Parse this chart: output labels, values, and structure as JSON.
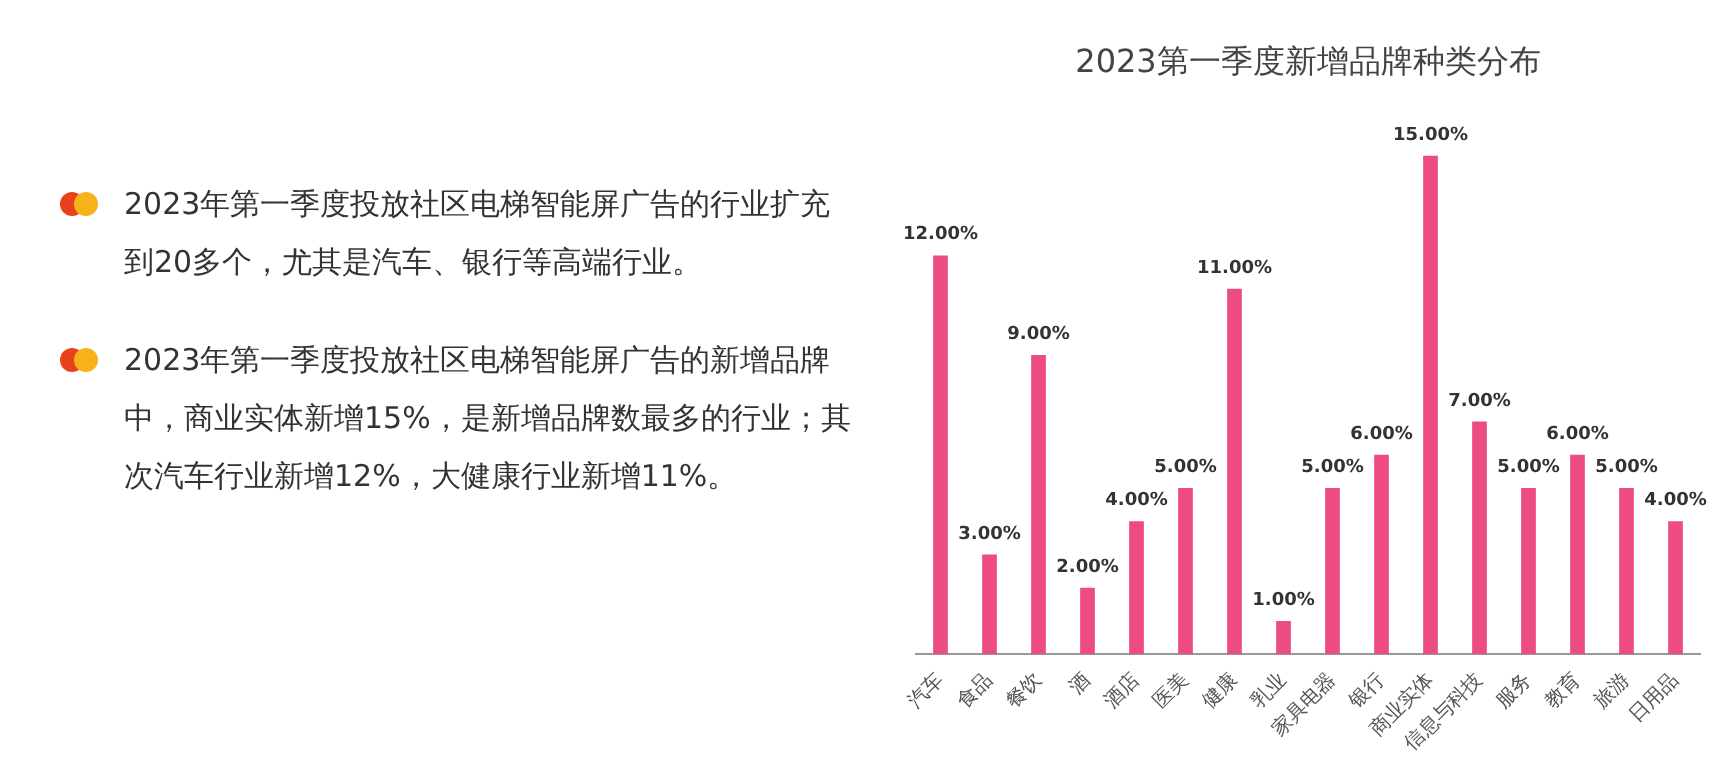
{
  "chart_data": {
    "type": "bar",
    "title": "2023第一季度新增品牌种类分布",
    "categories": [
      "汽车",
      "食品",
      "餐饮",
      "酒",
      "酒店",
      "医美",
      "健康",
      "乳业",
      "家具电器",
      "银行",
      "商业实体",
      "信息与科技",
      "服务",
      "教育",
      "旅游",
      "日用品"
    ],
    "series": [
      {
        "color": "#ec4c82",
        "values": [
          12,
          3,
          9,
          2,
          4,
          5,
          11,
          1,
          5,
          6,
          15,
          7,
          5,
          6,
          5,
          4
        ],
        "value_labels": [
          "12.00%",
          "3.00%",
          "9.00%",
          "2.00%",
          "4.00%",
          "5.00%",
          "11.00%",
          "1.00%",
          "5.00%",
          "6.00%",
          "15.00%",
          "7.00%",
          "5.00%",
          "6.00%",
          "5.00%",
          "4.00%"
        ]
      }
    ],
    "tick_labels": "x",
    "grid": false,
    "legend": false,
    "annotations": [
      "2023年第一季度投放社区电梯智能屏广告的行业扩充到20多个，尤其是汽车、银行等高端行业。",
      "2023年第一季度投放社区电梯智能屏广告的新增品牌中，商业实体新增15%，是新增品牌数最多的行业；其次汽车行业新增12%，大健康行业新增11%。"
    ]
  }
}
